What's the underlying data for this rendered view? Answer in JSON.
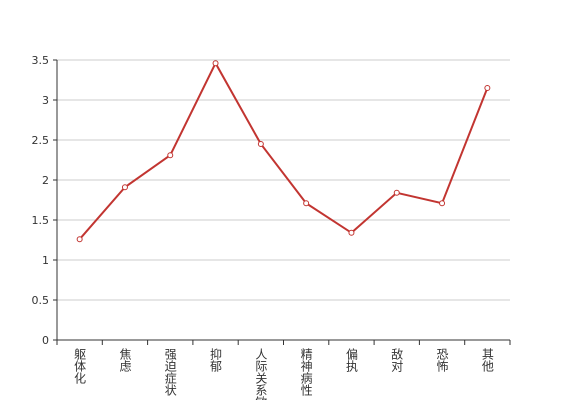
{
  "chart_data": {
    "type": "line",
    "categories": [
      "躯体化",
      "焦虑",
      "强迫症状",
      "抑郁",
      "人际关系敏感",
      "精神病性",
      "偏执",
      "敌对",
      "恐怖",
      "其他"
    ],
    "series": [
      {
        "color": "#c23531",
        "values": [
          1.26,
          1.91,
          2.31,
          3.46,
          2.45,
          1.71,
          1.34,
          1.84,
          1.71,
          3.15
        ]
      }
    ],
    "ylim": [
      0,
      3.5
    ],
    "yticks": [
      0,
      0.5,
      1,
      1.5,
      2,
      2.5,
      3,
      3.5
    ],
    "grid": true
  }
}
